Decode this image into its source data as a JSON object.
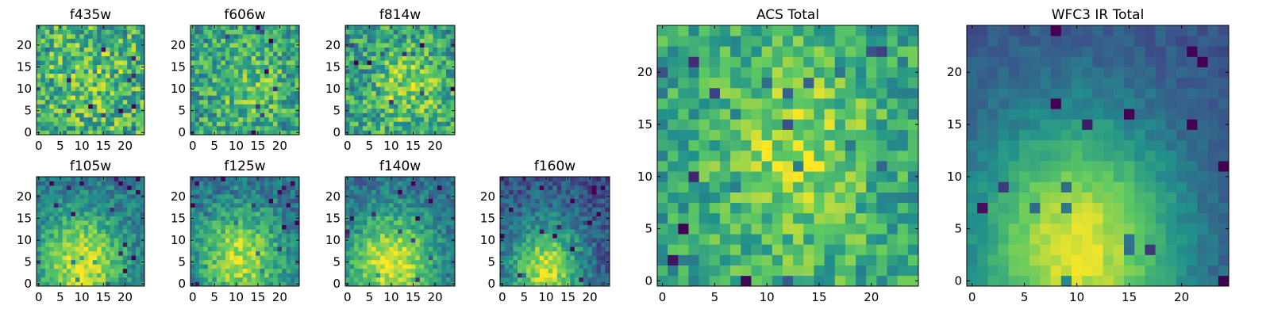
{
  "figure": {
    "colormap": "viridis",
    "colormap_stops": [
      "#440154",
      "#3b528b",
      "#21918c",
      "#5ec962",
      "#fde725"
    ],
    "pixel_grid": [
      25,
      25
    ]
  },
  "chart_data": [
    {
      "type": "heatmap",
      "title": "f435w",
      "xlim": [
        0,
        24
      ],
      "ylim": [
        0,
        24
      ],
      "xticks": [
        0,
        5,
        10,
        15,
        20
      ],
      "yticks": [
        0,
        5,
        10,
        15,
        20
      ]
    },
    {
      "type": "heatmap",
      "title": "f606w",
      "xlim": [
        0,
        24
      ],
      "ylim": [
        0,
        24
      ],
      "xticks": [
        0,
        5,
        10,
        15,
        20
      ],
      "yticks": [
        0,
        5,
        10,
        15,
        20
      ]
    },
    {
      "type": "heatmap",
      "title": "f814w",
      "xlim": [
        0,
        24
      ],
      "ylim": [
        0,
        24
      ],
      "xticks": [
        0,
        5,
        10,
        15,
        20
      ],
      "yticks": [
        0,
        5,
        10,
        15,
        20
      ]
    },
    {
      "type": "heatmap",
      "title": "f105w",
      "xlim": [
        0,
        24
      ],
      "ylim": [
        0,
        24
      ],
      "xticks": [
        0,
        5,
        10,
        15,
        20
      ],
      "yticks": [
        0,
        5,
        10,
        15,
        20
      ]
    },
    {
      "type": "heatmap",
      "title": "f125w",
      "xlim": [
        0,
        24
      ],
      "ylim": [
        0,
        24
      ],
      "xticks": [
        0,
        5,
        10,
        15,
        20
      ],
      "yticks": [
        0,
        5,
        10,
        15,
        20
      ]
    },
    {
      "type": "heatmap",
      "title": "f140w",
      "xlim": [
        0,
        24
      ],
      "ylim": [
        0,
        24
      ],
      "xticks": [
        0,
        5,
        10,
        15,
        20
      ],
      "yticks": [
        0,
        5,
        10,
        15,
        20
      ]
    },
    {
      "type": "heatmap",
      "title": "f160w",
      "xlim": [
        0,
        24
      ],
      "ylim": [
        0,
        24
      ],
      "xticks": [
        0,
        5,
        10,
        15,
        20
      ],
      "yticks": [
        0,
        5,
        10,
        15,
        20
      ]
    },
    {
      "type": "heatmap",
      "title": "ACS Total",
      "xlim": [
        0,
        24
      ],
      "ylim": [
        0,
        24
      ],
      "xticks": [
        0,
        5,
        10,
        15,
        20
      ],
      "yticks": [
        0,
        5,
        10,
        15,
        20
      ]
    },
    {
      "type": "heatmap",
      "title": "WFC3 IR Total",
      "xlim": [
        0,
        24
      ],
      "ylim": [
        0,
        24
      ],
      "xticks": [
        0,
        5,
        10,
        15,
        20
      ],
      "yticks": [
        0,
        5,
        10,
        15,
        20
      ]
    }
  ]
}
